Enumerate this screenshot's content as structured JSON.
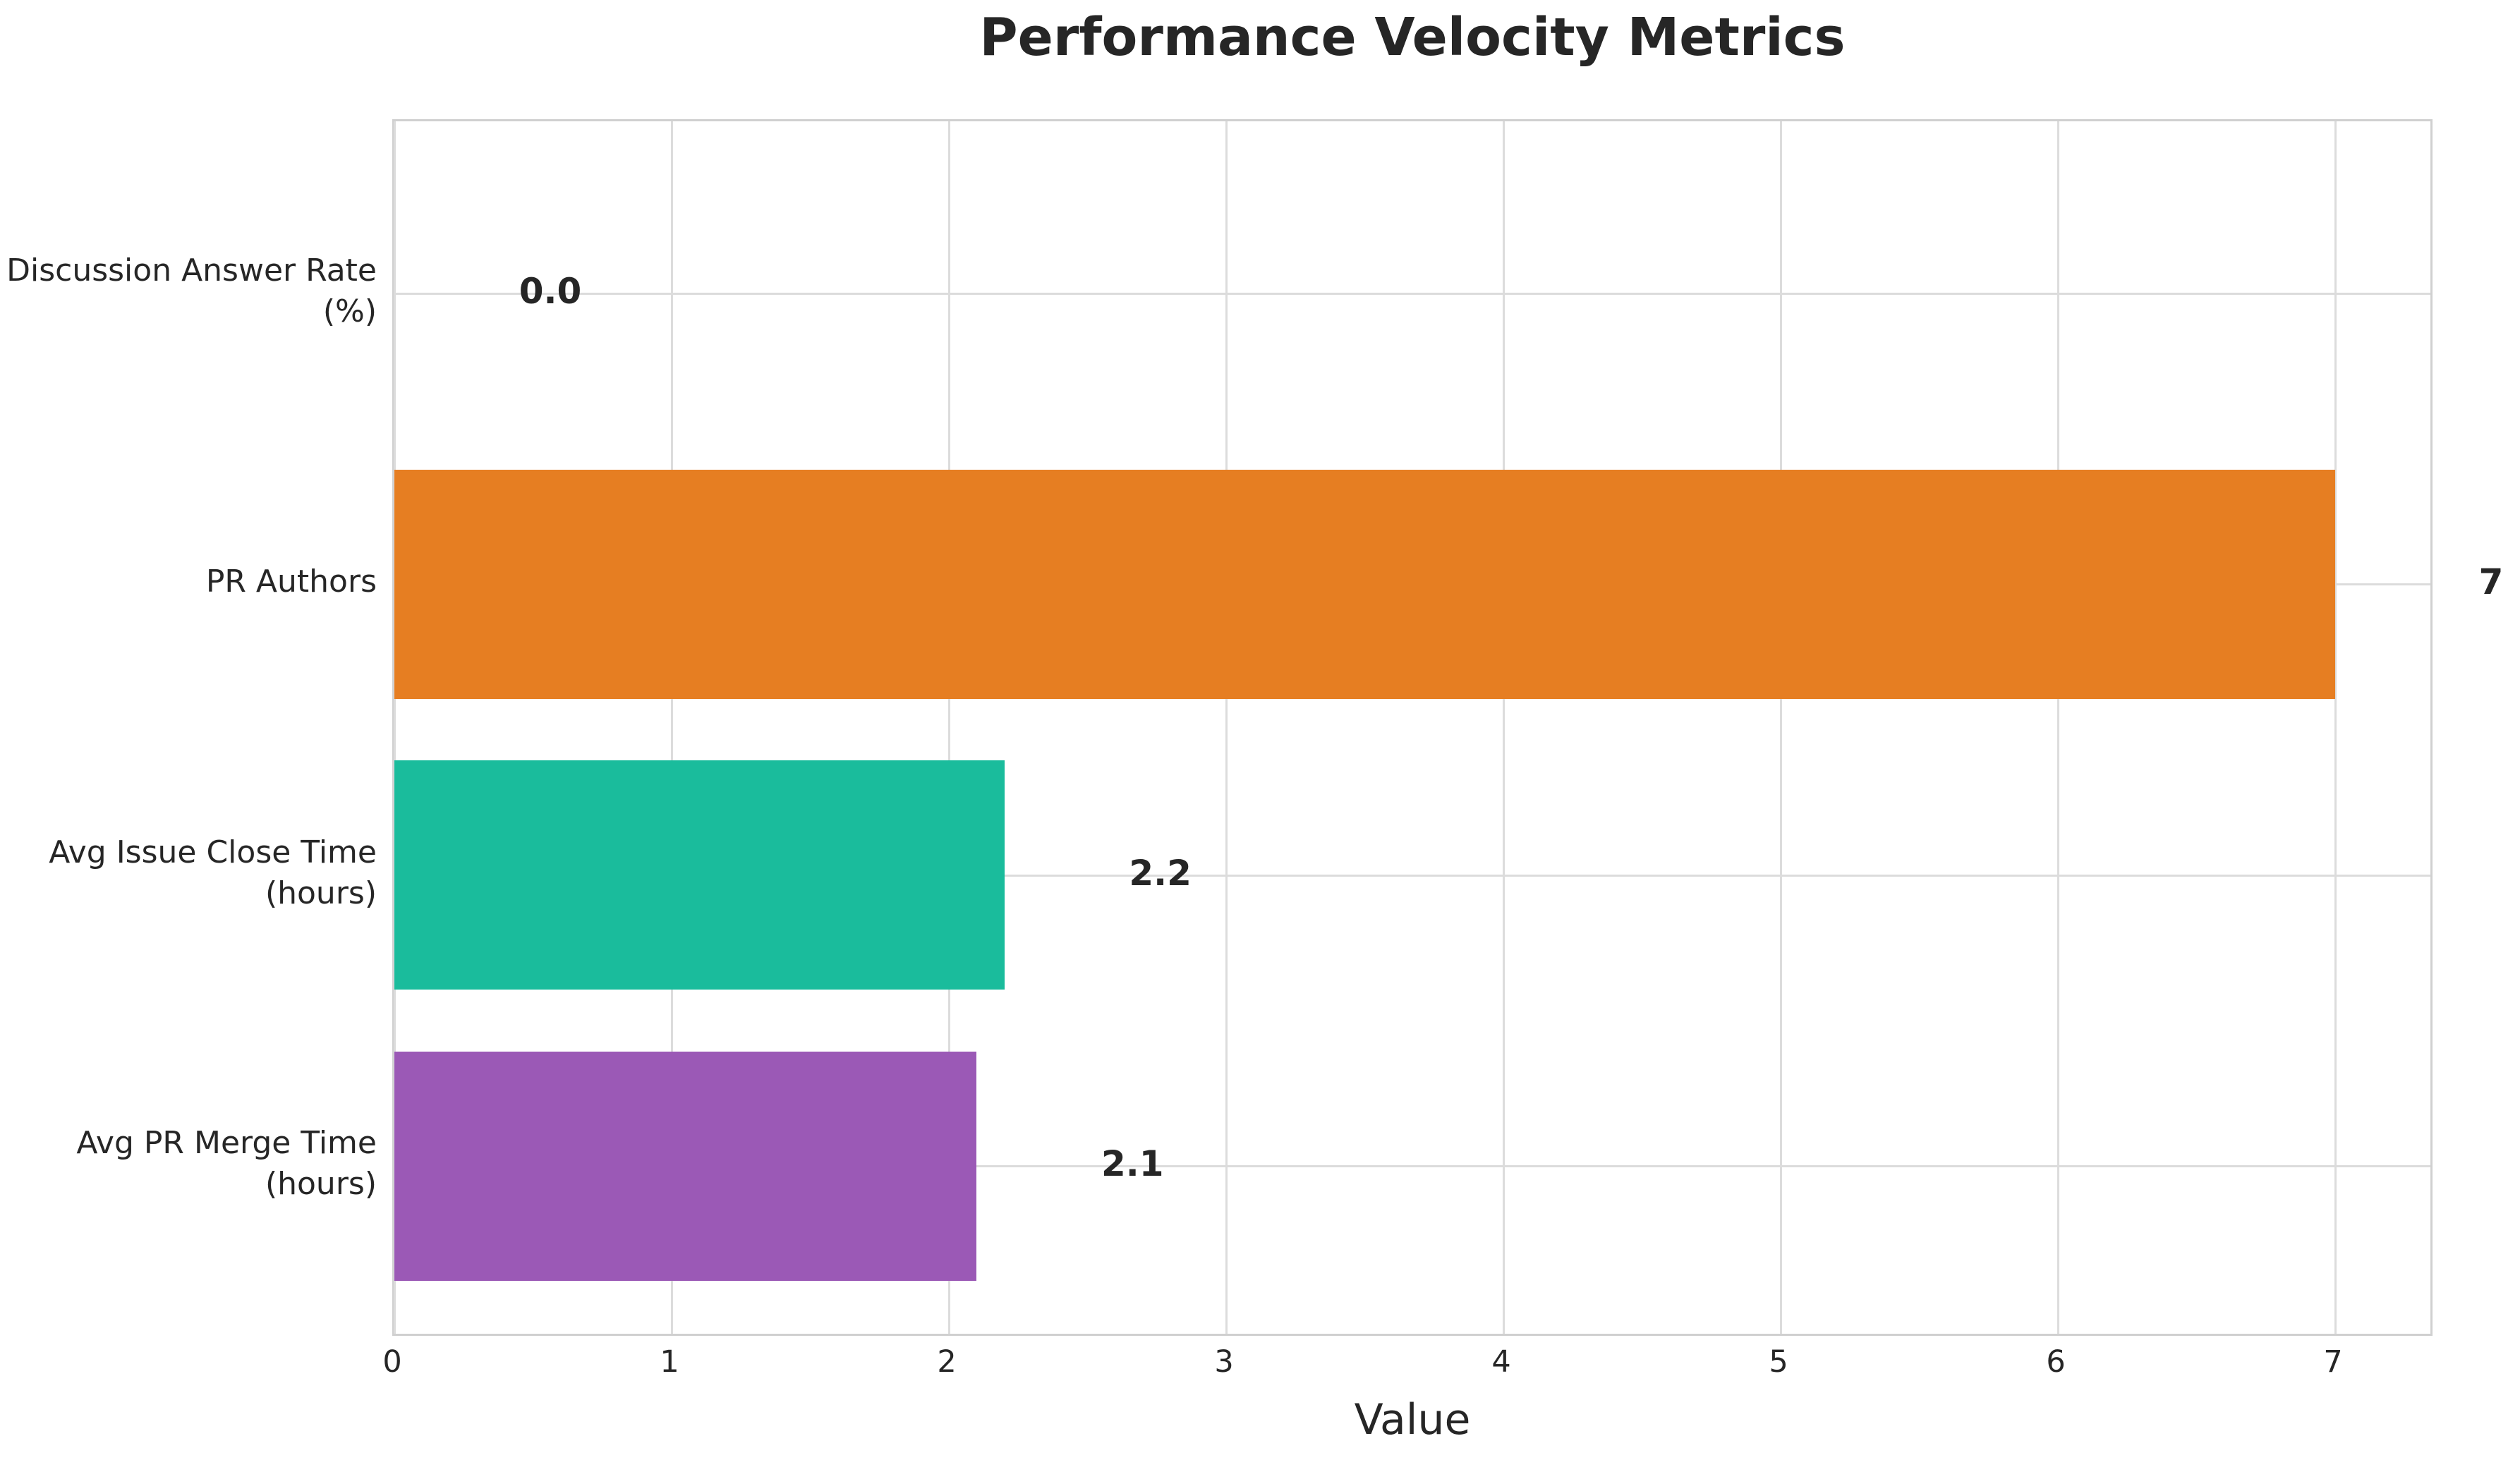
{
  "title": "Performance Velocity Metrics",
  "chart_data": {
    "type": "bar",
    "orientation": "horizontal",
    "title": "Performance Velocity Metrics",
    "xlabel": "Value",
    "ylabel": "",
    "xticks": [
      0,
      1,
      2,
      3,
      4,
      5,
      6,
      7
    ],
    "xlim": [
      0,
      7.36
    ],
    "grid": true,
    "legend": false,
    "categories": [
      "Discussion Answer Rate (%)",
      "PR Authors",
      "Avg Issue Close Time (hours)",
      "Avg PR Merge Time (hours)"
    ],
    "category_lines": [
      [
        "Discussion Answer Rate",
        "(%)"
      ],
      [
        "PR Authors"
      ],
      [
        "Avg Issue Close Time",
        "(hours)"
      ],
      [
        "Avg PR Merge Time",
        "(hours)"
      ]
    ],
    "values": [
      0.0,
      7,
      2.2,
      2.1
    ],
    "value_labels": [
      "0.0",
      "7",
      "2.2",
      "2.1"
    ],
    "bar_colors": [
      null,
      "#e67e22",
      "#1abc9c",
      "#9b59b6"
    ],
    "style_colors": {
      "grid": "#dcdcdc",
      "spine": "#d0d0d0",
      "text": "#262626",
      "background": "#ffffff"
    }
  }
}
